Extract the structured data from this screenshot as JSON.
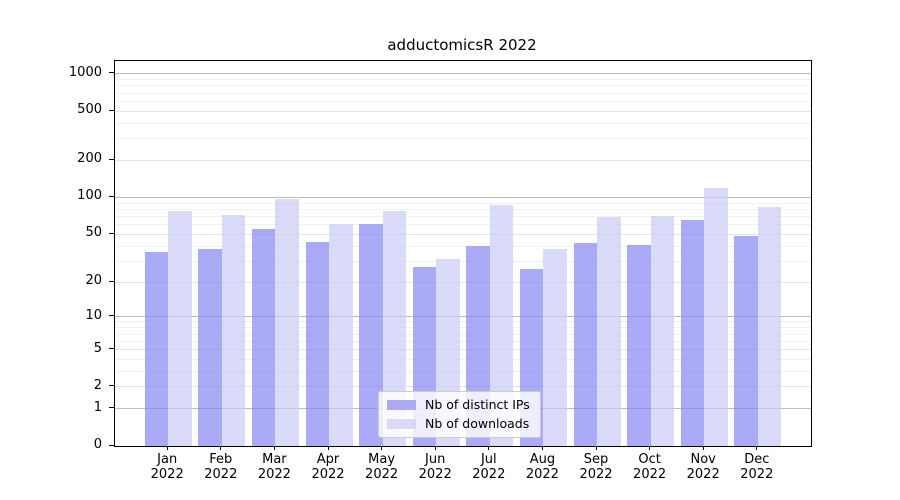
{
  "chart_data": {
    "type": "bar",
    "title": "adductomicsR 2022",
    "categories": [
      "Jan",
      "Feb",
      "Mar",
      "Apr",
      "May",
      "Jun",
      "Jul",
      "Aug",
      "Sep",
      "Oct",
      "Nov",
      "Dec"
    ],
    "year": "2022",
    "series": [
      {
        "name": "Nb of distinct IPs",
        "values": [
          36,
          38,
          55,
          43,
          61,
          27,
          40,
          26,
          42,
          41,
          65,
          48
        ],
        "color": "#aaaaf5",
        "fill": "rgba(134,134,242,0.7)"
      },
      {
        "name": "Nb of downloads",
        "values": [
          78,
          72,
          97,
          61,
          78,
          31,
          87,
          38,
          69,
          70,
          120,
          84
        ],
        "color": "#dadaf8",
        "fill": "rgba(202,202,246,0.7)"
      }
    ],
    "yticks": [
      0,
      1,
      2,
      5,
      10,
      20,
      50,
      100,
      200,
      500,
      1000
    ],
    "minor_yticks": [
      3,
      4,
      6,
      7,
      8,
      9,
      30,
      40,
      60,
      70,
      80,
      90,
      300,
      400,
      600,
      700,
      800,
      900
    ],
    "scale": "log10(1+x)",
    "ylim": [
      0,
      1272
    ],
    "grid": true,
    "legend_position": "lower center"
  }
}
